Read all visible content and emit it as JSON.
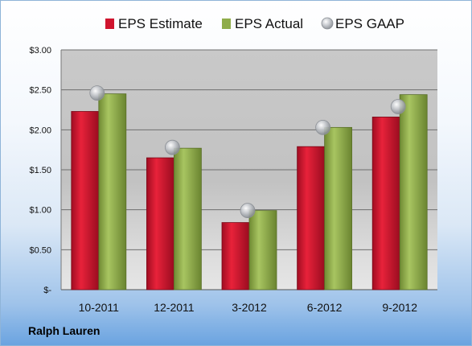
{
  "company": "Ralph Lauren",
  "chart_data": {
    "type": "bar",
    "categories": [
      "10-2011",
      "12-2011",
      "3-2012",
      "6-2012",
      "9-2012"
    ],
    "series": [
      {
        "name": "EPS Estimate",
        "kind": "bar",
        "color": "#c8102e",
        "values": [
          2.23,
          1.65,
          0.84,
          1.79,
          2.16
        ]
      },
      {
        "name": "EPS Actual",
        "kind": "bar",
        "color": "#8fad4a",
        "values": [
          2.45,
          1.77,
          0.99,
          2.03,
          2.44
        ]
      },
      {
        "name": "EPS GAAP",
        "kind": "marker",
        "color": "#b8bcc2",
        "values": [
          2.46,
          1.78,
          0.99,
          2.03,
          2.29
        ]
      }
    ],
    "ylim": [
      0,
      3.0
    ],
    "ytick_values": [
      0,
      0.5,
      1.0,
      1.5,
      2.0,
      2.5,
      3.0
    ],
    "ytick_labels": [
      "$-",
      "$0.50",
      "$1.00",
      "$1.50",
      "$2.00",
      "$2.50",
      "$3.00"
    ],
    "grid": true,
    "legend_position": "top"
  }
}
